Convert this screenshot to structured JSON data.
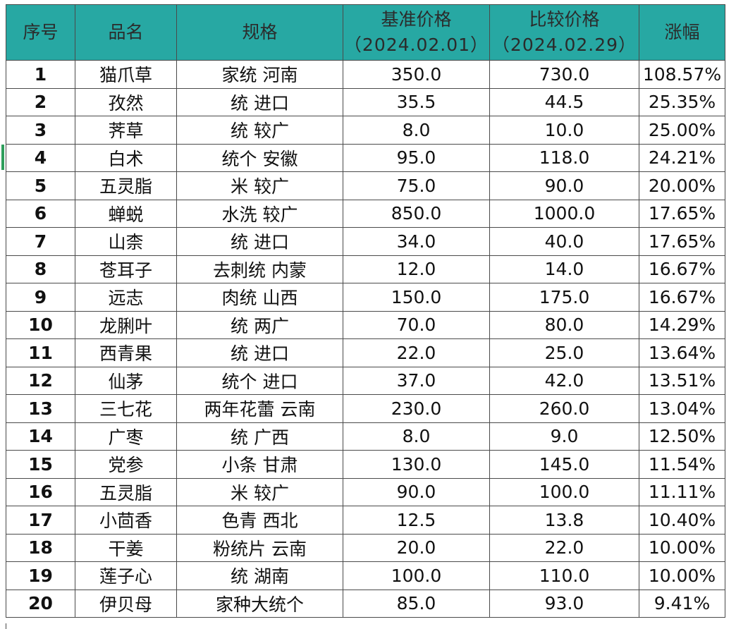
{
  "table": {
    "columns": {
      "no": "序号",
      "name": "品名",
      "spec": "规格",
      "base_price": "基准价格",
      "base_date": "（2024.02.01）",
      "compare_price": "比较价格",
      "compare_date": "（2024.02.29）",
      "change": "涨幅"
    },
    "rows": [
      {
        "no": "1",
        "name": "猫爪草",
        "spec": "家统 河南",
        "base": "350.0",
        "compare": "730.0",
        "change": "108.57%"
      },
      {
        "no": "2",
        "name": "孜然",
        "spec": "统 进口",
        "base": "35.5",
        "compare": "44.5",
        "change": "25.35%"
      },
      {
        "no": "3",
        "name": "荠草",
        "spec": "统 较广",
        "base": "8.0",
        "compare": "10.0",
        "change": "25.00%"
      },
      {
        "no": "4",
        "name": "白术",
        "spec": "统个 安徽",
        "base": "95.0",
        "compare": "118.0",
        "change": "24.21%"
      },
      {
        "no": "5",
        "name": "五灵脂",
        "spec": "米 较广",
        "base": "75.0",
        "compare": "90.0",
        "change": "20.00%"
      },
      {
        "no": "6",
        "name": "蝉蜕",
        "spec": "水洗 较广",
        "base": "850.0",
        "compare": "1000.0",
        "change": "17.65%"
      },
      {
        "no": "7",
        "name": "山柰",
        "spec": "统 进口",
        "base": "34.0",
        "compare": "40.0",
        "change": "17.65%"
      },
      {
        "no": "8",
        "name": "苍耳子",
        "spec": "去刺统 内蒙",
        "base": "12.0",
        "compare": "14.0",
        "change": "16.67%"
      },
      {
        "no": "9",
        "name": "远志",
        "spec": "肉统 山西",
        "base": "150.0",
        "compare": "175.0",
        "change": "16.67%"
      },
      {
        "no": "10",
        "name": "龙脷叶",
        "spec": "统 两广",
        "base": "70.0",
        "compare": "80.0",
        "change": "14.29%"
      },
      {
        "no": "11",
        "name": "西青果",
        "spec": "统 进口",
        "base": "22.0",
        "compare": "25.0",
        "change": "13.64%"
      },
      {
        "no": "12",
        "name": "仙茅",
        "spec": "统个 进口",
        "base": "37.0",
        "compare": "42.0",
        "change": "13.51%"
      },
      {
        "no": "13",
        "name": "三七花",
        "spec": "两年花蕾 云南",
        "base": "230.0",
        "compare": "260.0",
        "change": "13.04%"
      },
      {
        "no": "14",
        "name": "广枣",
        "spec": "统 广西",
        "base": "8.0",
        "compare": "9.0",
        "change": "12.50%"
      },
      {
        "no": "15",
        "name": "党参",
        "spec": "小条 甘肃",
        "base": "130.0",
        "compare": "145.0",
        "change": "11.54%"
      },
      {
        "no": "16",
        "name": "五灵脂",
        "spec": "米 较广",
        "base": "90.0",
        "compare": "100.0",
        "change": "11.11%"
      },
      {
        "no": "17",
        "name": "小茴香",
        "spec": "色青 西北",
        "base": "12.5",
        "compare": "13.8",
        "change": "10.40%"
      },
      {
        "no": "18",
        "name": "干姜",
        "spec": "粉统片 云南",
        "base": "20.0",
        "compare": "22.0",
        "change": "10.00%"
      },
      {
        "no": "19",
        "name": "莲子心",
        "spec": "统 湖南",
        "base": "100.0",
        "compare": "110.0",
        "change": "10.00%"
      },
      {
        "no": "20",
        "name": "伊贝母",
        "spec": "家种大统个",
        "base": "85.0",
        "compare": "93.0",
        "change": "9.41%"
      }
    ]
  },
  "colors": {
    "header_bg": "#27a8a3",
    "change_text": "#b0303a",
    "grid_line": "#4a4a4a"
  }
}
